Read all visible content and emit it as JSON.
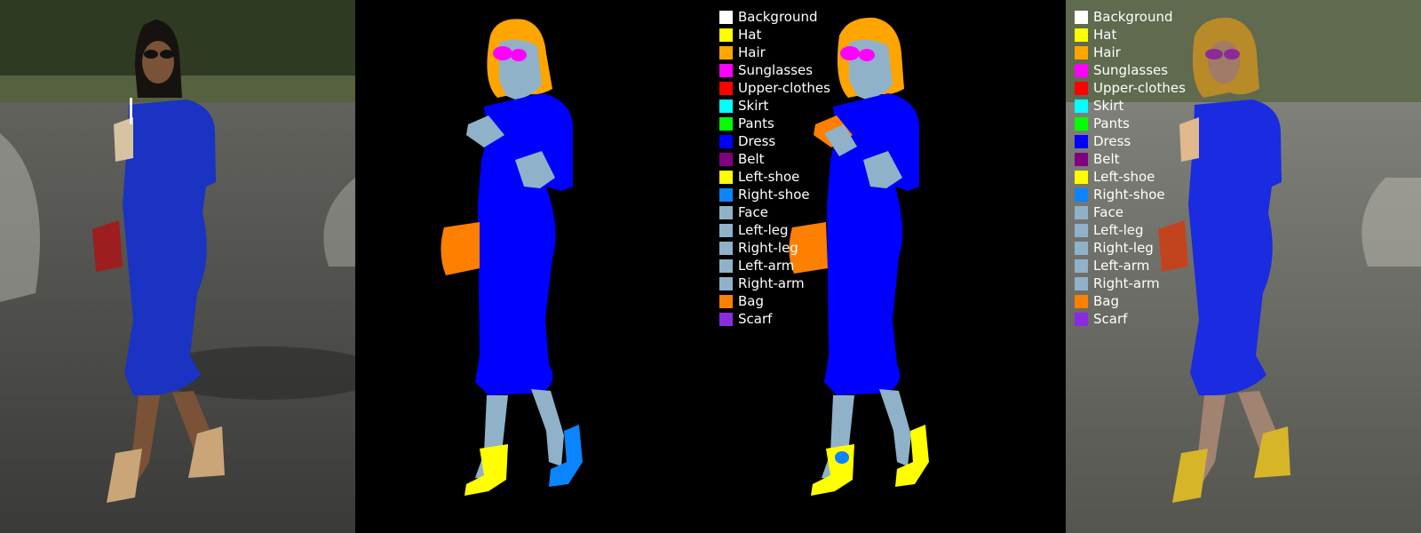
{
  "panels": [
    {
      "id": "original-photo"
    },
    {
      "id": "segmentation-mask-a"
    },
    {
      "id": "segmentation-mask-b"
    },
    {
      "id": "segmentation-overlay"
    }
  ],
  "legend": {
    "items": [
      {
        "label": "Background",
        "color": "#ffffff"
      },
      {
        "label": "Hat",
        "color": "#ffff00"
      },
      {
        "label": "Hair",
        "color": "#ffa500"
      },
      {
        "label": "Sunglasses",
        "color": "#ff00ff"
      },
      {
        "label": "Upper-clothes",
        "color": "#ff0000"
      },
      {
        "label": "Skirt",
        "color": "#00ffff"
      },
      {
        "label": "Pants",
        "color": "#00ff00"
      },
      {
        "label": "Dress",
        "color": "#0000ff"
      },
      {
        "label": "Belt",
        "color": "#800080"
      },
      {
        "label": "Left-shoe",
        "color": "#ffff00"
      },
      {
        "label": "Right-shoe",
        "color": "#0a84ff"
      },
      {
        "label": "Face",
        "color": "#8fb2c9"
      },
      {
        "label": "Left-leg",
        "color": "#8fb2c9"
      },
      {
        "label": "Right-leg",
        "color": "#8fb2c9"
      },
      {
        "label": "Left-arm",
        "color": "#8fb2c9"
      },
      {
        "label": "Right-arm",
        "color": "#8fb2c9"
      },
      {
        "label": "Bag",
        "color": "#ff7f00"
      },
      {
        "label": "Scarf",
        "color": "#8a2be2"
      }
    ]
  },
  "colors": {
    "background": "#000000",
    "dress": "#0000ff",
    "dress_photo": "#1a33c2",
    "skin": "#8fb2c9",
    "hair": "#ffa500",
    "sunglasses": "#ff00ff",
    "bag": "#ff7f00",
    "left_shoe": "#ffff00",
    "right_shoe": "#0a84ff"
  }
}
